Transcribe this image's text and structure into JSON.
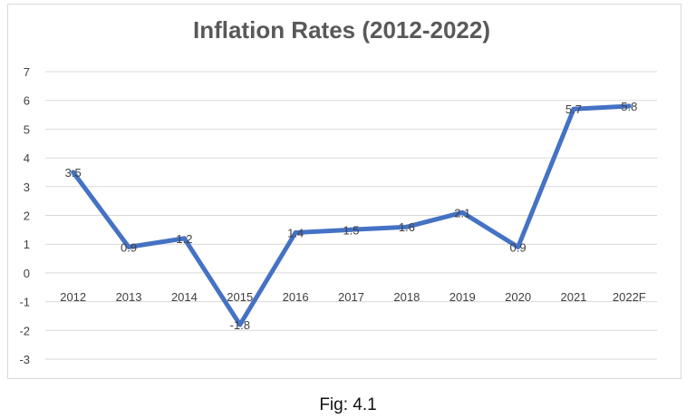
{
  "chart_data": {
    "type": "line",
    "title": "Inflation Rates (2012-2022)",
    "xlabel": "",
    "ylabel": "",
    "categories": [
      "2012",
      "2013",
      "2014",
      "2015",
      "2016",
      "2017",
      "2018",
      "2019",
      "2020",
      "2021",
      "2022F"
    ],
    "series": [
      {
        "values": [
          3.5,
          0.9,
          1.2,
          -1.8,
          1.4,
          1.5,
          1.6,
          2.1,
          0.9,
          5.7,
          5.8
        ]
      }
    ],
    "data_labels": [
      "3.5",
      "0.9",
      "1.2",
      "-1.8",
      "1.4",
      "1.5",
      "1.6",
      "2.1",
      "0.9",
      "5.7",
      "5.8"
    ],
    "ylim": [
      -3,
      7
    ],
    "yticks": [
      "7",
      "6",
      "5",
      "4",
      "3",
      "2",
      "1",
      "0",
      "-1",
      "-2",
      "-3"
    ],
    "grid": true,
    "legend": "none",
    "colors": {
      "line": "#4472c4",
      "grid": "#d9d9d9",
      "text": "#404040",
      "title": "#595959"
    }
  },
  "caption": "Fig: 4.1"
}
